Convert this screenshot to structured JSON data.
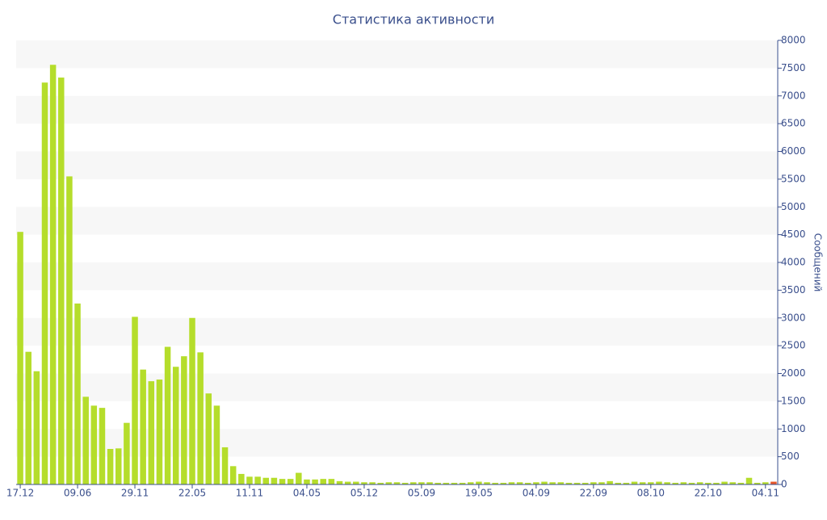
{
  "chart_data": {
    "type": "bar",
    "title": "Статистика активности",
    "y_axis_label": "Сообщений",
    "categories": [
      "17.12",
      null,
      null,
      null,
      null,
      null,
      null,
      "09.06",
      null,
      null,
      null,
      null,
      null,
      null,
      "29.11",
      null,
      null,
      null,
      null,
      null,
      null,
      "22.05",
      null,
      null,
      null,
      null,
      null,
      null,
      "11.11",
      null,
      null,
      null,
      null,
      null,
      null,
      "04.05",
      null,
      null,
      null,
      null,
      null,
      null,
      "05.12",
      null,
      null,
      null,
      null,
      null,
      null,
      "05.09",
      null,
      null,
      null,
      null,
      null,
      null,
      "19.05",
      null,
      null,
      null,
      null,
      null,
      null,
      "04.09",
      null,
      null,
      null,
      null,
      null,
      null,
      "22.09",
      null,
      null,
      null,
      null,
      null,
      null,
      "08.10",
      null,
      null,
      null,
      null,
      null,
      null,
      "22.10",
      null,
      null,
      null,
      null,
      null,
      null,
      "04.11",
      null
    ],
    "values": [
      4550,
      2390,
      2040,
      7240,
      7560,
      7330,
      5550,
      3260,
      1580,
      1420,
      1380,
      640,
      650,
      1110,
      3020,
      2070,
      1860,
      1890,
      2480,
      2120,
      2310,
      3000,
      2380,
      1640,
      1420,
      670,
      330,
      190,
      140,
      140,
      120,
      120,
      100,
      100,
      210,
      90,
      90,
      100,
      100,
      60,
      50,
      50,
      40,
      40,
      30,
      40,
      40,
      30,
      40,
      40,
      40,
      30,
      30,
      30,
      30,
      40,
      50,
      40,
      30,
      30,
      40,
      40,
      30,
      40,
      50,
      40,
      40,
      30,
      30,
      30,
      40,
      40,
      60,
      30,
      30,
      50,
      40,
      40,
      50,
      40,
      30,
      40,
      30,
      40,
      30,
      30,
      50,
      40,
      30,
      120,
      30,
      40,
      50
    ],
    "colors": [
      "#b5dd2b",
      "#b5dd2b",
      "#b5dd2b",
      "#b5dd2b",
      "#b5dd2b",
      "#b5dd2b",
      "#b5dd2b",
      "#b5dd2b",
      "#b5dd2b",
      "#b5dd2b",
      "#b5dd2b",
      "#b5dd2b",
      "#b5dd2b",
      "#b5dd2b",
      "#b5dd2b",
      "#b5dd2b",
      "#b5dd2b",
      "#b5dd2b",
      "#b5dd2b",
      "#b5dd2b",
      "#b5dd2b",
      "#b5dd2b",
      "#b5dd2b",
      "#b5dd2b",
      "#b5dd2b",
      "#b5dd2b",
      "#b5dd2b",
      "#b5dd2b",
      "#b5dd2b",
      "#b5dd2b",
      "#b5dd2b",
      "#b5dd2b",
      "#b5dd2b",
      "#b5dd2b",
      "#b5dd2b",
      "#b5dd2b",
      "#b5dd2b",
      "#b5dd2b",
      "#b5dd2b",
      "#b5dd2b",
      "#b5dd2b",
      "#b5dd2b",
      "#b5dd2b",
      "#b5dd2b",
      "#b5dd2b",
      "#b5dd2b",
      "#b5dd2b",
      "#b5dd2b",
      "#b5dd2b",
      "#b5dd2b",
      "#b5dd2b",
      "#b5dd2b",
      "#b5dd2b",
      "#b5dd2b",
      "#b5dd2b",
      "#b5dd2b",
      "#b5dd2b",
      "#b5dd2b",
      "#b5dd2b",
      "#b5dd2b",
      "#b5dd2b",
      "#b5dd2b",
      "#b5dd2b",
      "#b5dd2b",
      "#b5dd2b",
      "#b5dd2b",
      "#b5dd2b",
      "#b5dd2b",
      "#b5dd2b",
      "#b5dd2b",
      "#b5dd2b",
      "#b5dd2b",
      "#b5dd2b",
      "#b5dd2b",
      "#b5dd2b",
      "#b5dd2b",
      "#b5dd2b",
      "#b5dd2b",
      "#b5dd2b",
      "#b5dd2b",
      "#b5dd2b",
      "#b5dd2b",
      "#b5dd2b",
      "#b5dd2b",
      "#b5dd2b",
      "#b5dd2b",
      "#b5dd2b",
      "#b5dd2b",
      "#b5dd2b",
      "#b5dd2b",
      "#b5dd2b",
      "#b5dd2b",
      "#e8572a"
    ],
    "ylim": [
      0,
      8000
    ],
    "yticks": [
      0,
      500,
      1000,
      1500,
      2000,
      2500,
      3000,
      3500,
      4000,
      4500,
      5000,
      5500,
      6000,
      6500,
      7000,
      7500,
      8000
    ],
    "grid": "bands"
  }
}
